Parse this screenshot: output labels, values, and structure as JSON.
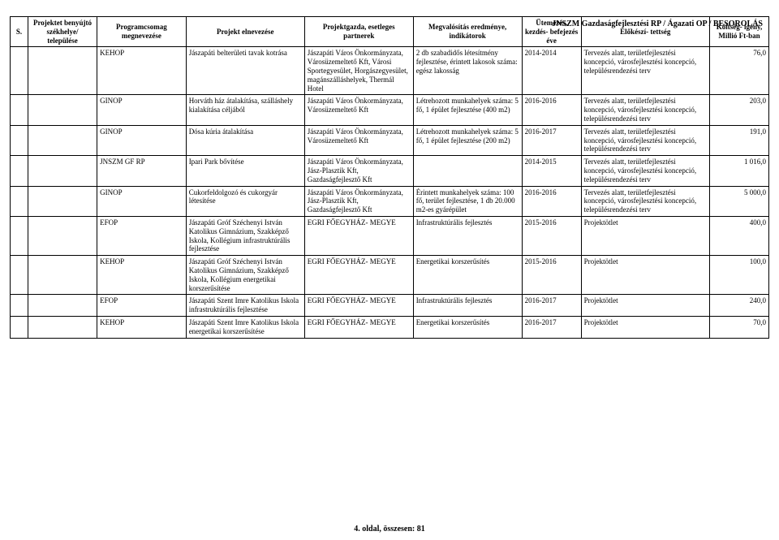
{
  "page": {
    "headerRight": "JNSZM Gazdaságfejlesztési RP / Ágazati OP / BESOROLÁS",
    "footer": "4. oldal, összesen: 81"
  },
  "table": {
    "columns": [
      "S.",
      "Projektet benyújtó székhelye/ települése",
      "Programcsomag megnevezése",
      "Projekt elnevezése",
      "Projektgazda, esetleges partnerek",
      "Megvalósítás eredménye, indikátorok",
      "Ütemezés, kezdés- befejezés éve",
      "Előkészí- tettség",
      "Költség- igény, Millió Ft-ban"
    ],
    "rows": [
      {
        "c0": "",
        "c1": "",
        "c2": "KEHOP",
        "c3": "Jászapáti belterületi tavak kotrása",
        "c4": "Jászapáti Város Önkormányzata, Városüzemeltető Kft, Városi Sportegyesület, Horgászegyesület, magánszálláshelyek, Thermál Hotel",
        "c5": "2 db szabadidős létesítmény fejlesztése, érintett lakosok száma: egész lakosság",
        "c6": "2014-2014",
        "c7": "Tervezés alatt, területfejlesztési koncepció, városfejlesztési koncepció, településrendezési terv",
        "c8": "76,0"
      },
      {
        "c0": "",
        "c1": "",
        "c2": "GINOP",
        "c3": "Horváth ház átalakítása, szálláshely kialakítása céljából",
        "c4": "Jászapáti Város Önkormányzata, Városüzemeltető Kft",
        "c5": "Létrehozott munkahelyek száma: 5 fő, 1 épület fejlesztése (400 m2)",
        "c6": "2016-2016",
        "c7": "Tervezés alatt, területfejlesztési koncepció, városfejlesztési koncepció, településrendezési terv",
        "c8": "203,0"
      },
      {
        "c0": "",
        "c1": "",
        "c2": "GINOP",
        "c3": "Dósa kúria átalakítása",
        "c4": "Jászapáti Város Önkormányzata, Városüzemeltető Kft",
        "c5": "Létrehozott munkahelyek száma: 5 fő, 1 épület fejlesztése (200 m2)",
        "c6": "2016-2017",
        "c7": "Tervezés alatt, területfejlesztési koncepció, városfejlesztési koncepció, településrendezési terv",
        "c8": "191,0"
      },
      {
        "c0": "",
        "c1": "",
        "c2": "JNSZM GF RP",
        "c3": "Ipari Park bővítése",
        "c4": "Jászapáti Város Önkormányzata, Jász-Plasztik Kft, Gazdaságfejlesztő Kft",
        "c5": "",
        "c6": "2014-2015",
        "c7": "Tervezés alatt, területfejlesztési koncepció, városfejlesztési koncepció, településrendezési terv",
        "c8": "1 016,0"
      },
      {
        "c0": "",
        "c1": "",
        "c2": "GINOP",
        "c3": "Cukorfeldolgozó és cukorgyár létesítése",
        "c4": "Jászapáti Város Önkormányzata, Jász-Plasztik Kft, Gazdaságfejlesztő Kft",
        "c5": "Érintett munkahelyek száma: 100 fő, terület fejlesztése, 1 db 20.000 m2-es gyárépület",
        "c6": "2016-2016",
        "c7": "Tervezés alatt, területfejlesztési koncepció, városfejlesztési koncepció, településrendezési terv",
        "c8": "5 000,0"
      },
      {
        "c0": "",
        "c1": "",
        "c2": "EFOP",
        "c3": "Jászapáti Gróf Széchenyi István Katolikus Gimnázium, Szakképző Iskola, Kollégium infrastruktúrális fejlesztése",
        "c4": "EGRI FŐEGYHÁZ- MEGYE",
        "c5": "Infrastruktúrális fejlesztés",
        "c6": "2015-2016",
        "c7": "Projektötlet",
        "c8": "400,0"
      },
      {
        "c0": "",
        "c1": "",
        "c2": "KEHOP",
        "c3": "Jászapáti Gróf Széchenyi István Katolikus Gimnázium, Szakképző Iskola, Kollégium energetikai korszerűsítése",
        "c4": "EGRI FŐEGYHÁZ- MEGYE",
        "c5": "Energetikai korszerűsítés",
        "c6": "2015-2016",
        "c7": "Projektötlet",
        "c8": "100,0"
      },
      {
        "c0": "",
        "c1": "",
        "c2": "EFOP",
        "c3": "Jászapáti Szent Imre Katolikus Iskola infrastruktúrális fejlesztése",
        "c4": "EGRI FŐEGYHÁZ- MEGYE",
        "c5": "Infrastruktúrális fejlesztés",
        "c6": "2016-2017",
        "c7": "Projektötlet",
        "c8": "240,0"
      },
      {
        "c0": "",
        "c1": "",
        "c2": "KEHOP",
        "c3": "Jászapáti Szent Imre Katolikus Iskola energetikai korszerűsítése",
        "c4": "EGRI FŐEGYHÁZ- MEGYE",
        "c5": "Energetikai korszerűsítés",
        "c6": "2016-2017",
        "c7": "Projektötlet",
        "c8": "70,0"
      }
    ]
  }
}
